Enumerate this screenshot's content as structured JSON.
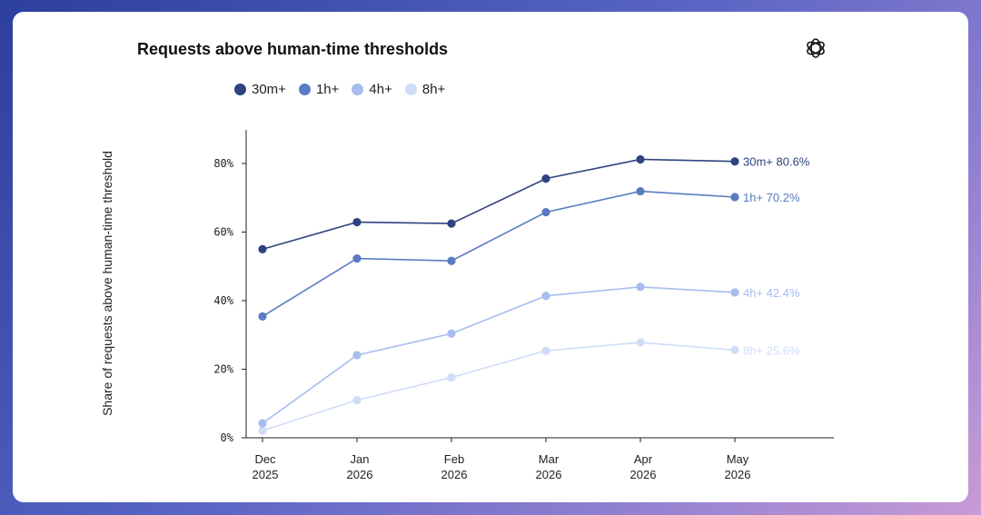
{
  "chart_data": {
    "type": "line",
    "title": "Requests above human-time thresholds",
    "ylabel": "Share of requests above human-time threshold",
    "xlabel": "",
    "categories": [
      [
        "Dec",
        "2025"
      ],
      [
        "Jan",
        "2026"
      ],
      [
        "Feb",
        "2026"
      ],
      [
        "Mar",
        "2026"
      ],
      [
        "Apr",
        "2026"
      ],
      [
        "May",
        "2026"
      ]
    ],
    "yticks": [
      "0%",
      "20%",
      "40%",
      "60%",
      "80%"
    ],
    "ylim": [
      0,
      90
    ],
    "grid": false,
    "legend_position": "top-left",
    "series": [
      {
        "name": "30m+",
        "color": "#2e4380",
        "values": [
          55.0,
          62.9,
          62.5,
          75.6,
          81.2,
          80.6
        ],
        "end_label": "30m+ 80.6%"
      },
      {
        "name": "1h+",
        "color": "#5b7bc2",
        "values": [
          35.4,
          52.3,
          51.6,
          65.8,
          71.9,
          70.2
        ],
        "end_label": "1h+ 70.2%"
      },
      {
        "name": "4h+",
        "color": "#a6bdee",
        "values": [
          4.2,
          24.1,
          30.4,
          41.4,
          44.0,
          42.4
        ],
        "end_label": "4h+ 42.4%"
      },
      {
        "name": "8h+",
        "color": "#cfdcf7",
        "values": [
          2.1,
          11.0,
          17.6,
          25.4,
          27.8,
          25.6
        ],
        "end_label": "8h+ 25.6%"
      }
    ]
  },
  "header": {
    "logo_icon": "openai-logo-icon"
  }
}
